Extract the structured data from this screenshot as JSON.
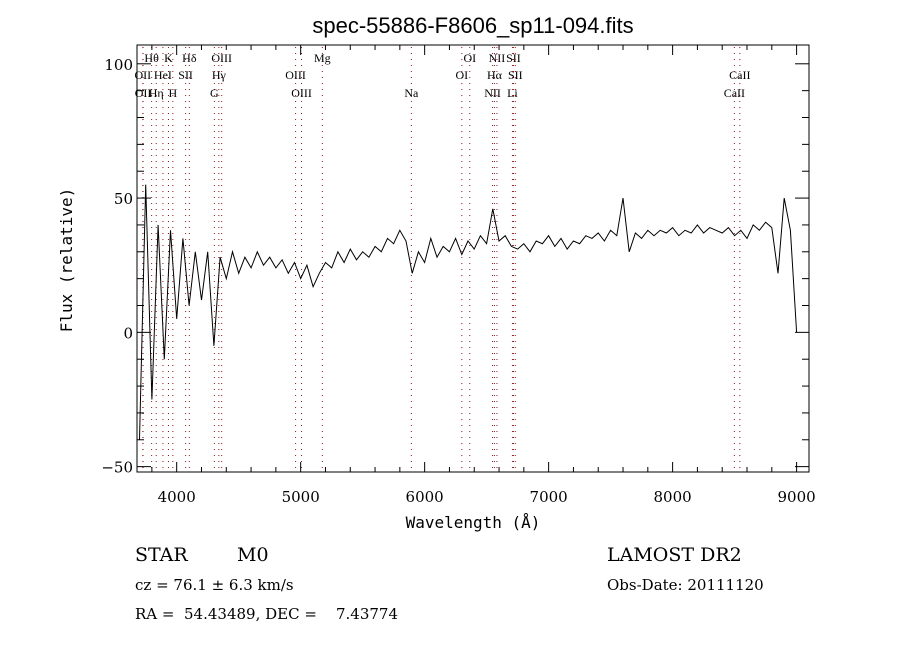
{
  "chart_data": {
    "type": "line",
    "title": "spec-55886-F8606_sp11-094.fits",
    "xlabel": "Wavelength (Å)",
    "ylabel": "Flux (relative)",
    "xlim": [
      3680,
      9100
    ],
    "ylim": [
      -52,
      107
    ],
    "xticks": [
      4000,
      5000,
      6000,
      7000,
      8000,
      9000
    ],
    "yticks": [
      -50,
      0,
      50,
      100
    ],
    "grid": false,
    "line_color": "#000000",
    "marker_color": "#8b1a1a",
    "series": [
      {
        "name": "spectrum",
        "x_start": 3700,
        "x_step": 50,
        "values": [
          -40,
          55,
          -25,
          40,
          -10,
          38,
          5,
          35,
          10,
          30,
          12,
          30,
          -5,
          28,
          20,
          30,
          22,
          28,
          24,
          30,
          25,
          28,
          24,
          27,
          22,
          26,
          20,
          25,
          17,
          22,
          26,
          24,
          30,
          26,
          31,
          27,
          30,
          28,
          32,
          30,
          35,
          33,
          38,
          34,
          22,
          30,
          26,
          35,
          28,
          32,
          30,
          35,
          29,
          34,
          31,
          36,
          33,
          46,
          34,
          36,
          32,
          31,
          33,
          30,
          34,
          33,
          36,
          32,
          35,
          31,
          34,
          33,
          36,
          35,
          37,
          34,
          38,
          36,
          50,
          30,
          37,
          35,
          38,
          36,
          38,
          37,
          39,
          36,
          38,
          37,
          40,
          37,
          39,
          38,
          37,
          39,
          36,
          38,
          35,
          40,
          38,
          41,
          39,
          22,
          50,
          38,
          0
        ]
      }
    ],
    "lines": [
      {
        "label": "Hθ",
        "wave": 3798,
        "row": 0
      },
      {
        "label": "K",
        "wave": 3934,
        "row": 0
      },
      {
        "label": "Hδ",
        "wave": 4102,
        "row": 0
      },
      {
        "label": "OIII",
        "wave": 4363,
        "row": 0
      },
      {
        "label": "Mg",
        "wave": 5175,
        "row": 0
      },
      {
        "label": "OI",
        "wave": 6364,
        "row": 0
      },
      {
        "label": "NII",
        "wave": 6583,
        "row": 0
      },
      {
        "label": "SII",
        "wave": 6716,
        "row": 0
      },
      {
        "label": "OII",
        "wave": 3727,
        "row": 1
      },
      {
        "label": "HeI",
        "wave": 3889,
        "row": 1
      },
      {
        "label": "SII",
        "wave": 4072,
        "row": 1
      },
      {
        "label": "Hγ",
        "wave": 4340,
        "row": 1
      },
      {
        "label": "OIII",
        "wave": 4959,
        "row": 1
      },
      {
        "label": "OI",
        "wave": 6300,
        "row": 1
      },
      {
        "label": "Hα",
        "wave": 6563,
        "row": 1
      },
      {
        "label": "SII",
        "wave": 6731,
        "row": 1
      },
      {
        "label": "CaII",
        "wave": 8542,
        "row": 1
      },
      {
        "label": "OII",
        "wave": 3729,
        "row": 2
      },
      {
        "label": "Hη",
        "wave": 3835,
        "row": 2
      },
      {
        "label": "H",
        "wave": 3969,
        "row": 2
      },
      {
        "label": "G",
        "wave": 4304,
        "row": 2
      },
      {
        "label": "OIII",
        "wave": 5007,
        "row": 2
      },
      {
        "label": "Na",
        "wave": 5893,
        "row": 2
      },
      {
        "label": "NII",
        "wave": 6548,
        "row": 2
      },
      {
        "label": "Li",
        "wave": 6708,
        "row": 2
      },
      {
        "label": "CaII",
        "wave": 8498,
        "row": 2
      }
    ]
  },
  "info": {
    "class": "STAR",
    "subclass": "M0",
    "survey": "LAMOST DR2",
    "cz": "cz = 76.1 ± 6.3 km/s",
    "obs_date": "Obs-Date: 20111120",
    "coords": "RA =  54.43489, DEC =    7.43774"
  }
}
